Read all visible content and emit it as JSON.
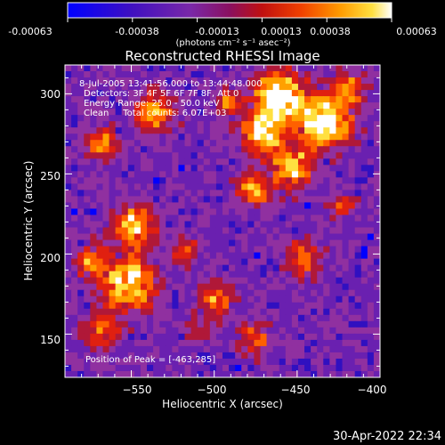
{
  "colorbar": {
    "tick_labels": [
      "-0.00063",
      "-0.00038",
      "-0.00013",
      "0.00013",
      "0.00038",
      "0.00063"
    ],
    "units_label": "(photons cm⁻² s⁻¹ asec⁻²)",
    "colormap": [
      "#0000ff",
      "#3010c0",
      "#6a20b0",
      "#9030a0",
      "#b01838",
      "#e02010",
      "#ff6000",
      "#ffa000",
      "#ffe040",
      "#ffffff"
    ]
  },
  "plot": {
    "title": "Reconstructed RHESSI Image",
    "xlabel": "Heliocentric X (arcsec)",
    "ylabel": "Heliocentric Y (arcsec)",
    "xlim": [
      -590,
      -400
    ],
    "ylim": [
      123,
      318
    ],
    "x_ticks": [
      "−550",
      "−500",
      "−450",
      "−400"
    ],
    "y_ticks": [
      "150",
      "200",
      "250",
      "300"
    ],
    "info_lines": [
      "8-Jul-2005 13:41:56.000 to 13:44:48.000",
      "Detectors: 3F 4F 5F 6F 7F 8F, Att 0",
      "Energy Range: 25.0 - 50.0 keV",
      "Clean     Total counts: 6.07E+03"
    ],
    "peak_text": "Position of Peak = [-463,285]"
  },
  "timestamp": "30-Apr-2022 22:34"
}
